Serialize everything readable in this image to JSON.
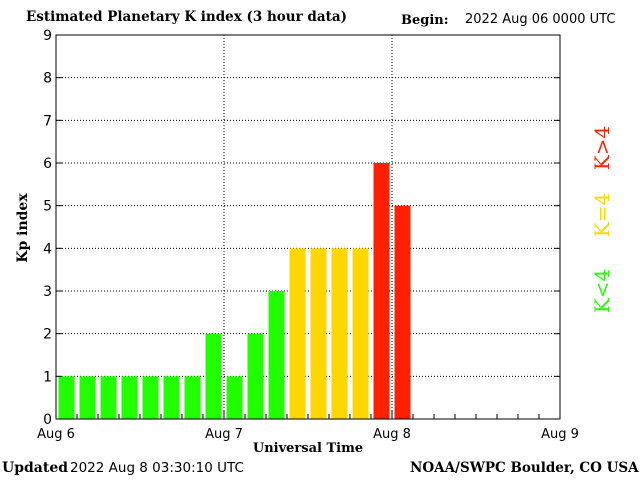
{
  "header": {
    "title": "Estimated Planetary K index (3 hour data)",
    "begin_label": "Begin:",
    "begin_value": "2022 Aug 06 0000 UTC"
  },
  "footer": {
    "updated_label": "Updated",
    "updated_value": "2022 Aug  8 03:30:10 UTC",
    "credit": "NOAA/SWPC Boulder, CO USA"
  },
  "legend": {
    "above": {
      "label": "K>4",
      "color": "#ff2000"
    },
    "equal": {
      "label": "K=4",
      "color": "#ffd700"
    },
    "below": {
      "label": "K<4",
      "color": "#22ff00"
    }
  },
  "chart_data": {
    "type": "bar",
    "xlabel": "Universal Time",
    "ylabel": "Kp index",
    "ylim": [
      0,
      9
    ],
    "yticks": [
      0,
      1,
      2,
      3,
      4,
      5,
      6,
      7,
      8,
      9
    ],
    "x_tick_labels": [
      "Aug 6",
      "Aug 7",
      "Aug 8",
      "Aug 9"
    ],
    "x_days": 3,
    "bars_per_day": 8,
    "values": [
      1,
      1,
      1,
      1,
      1,
      1,
      1,
      2,
      1,
      2,
      3,
      4,
      4,
      4,
      4,
      6,
      5
    ],
    "grid": true,
    "colors": {
      "below": "#22ff00",
      "equal": "#ffd700",
      "above": "#ff2000"
    }
  }
}
